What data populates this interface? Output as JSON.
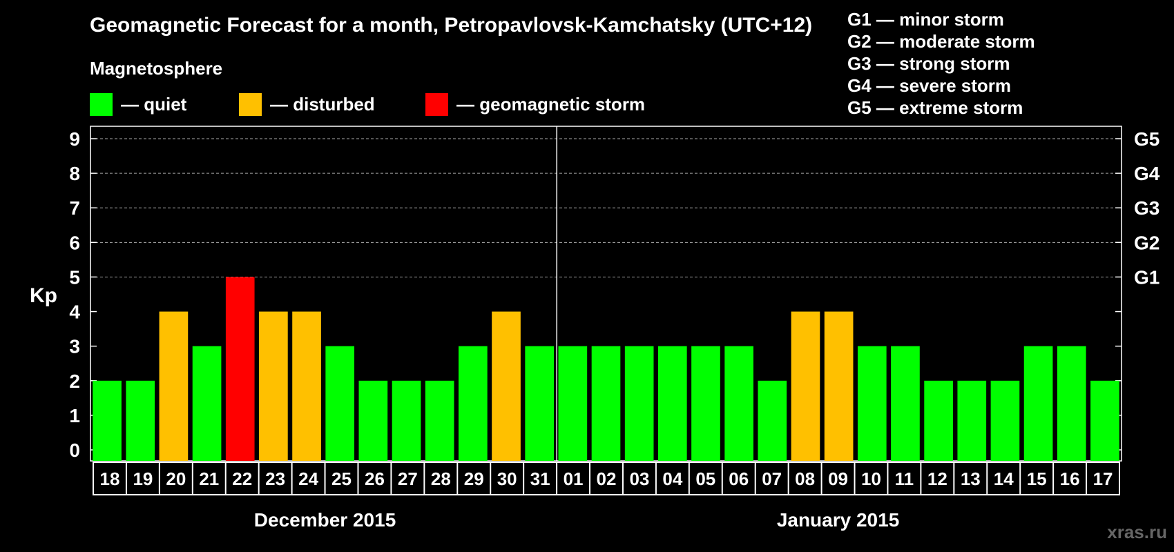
{
  "colors": {
    "quiet": "#00ff00",
    "disturbed": "#ffc000",
    "storm": "#ff0000"
  },
  "legend": {
    "heading": "Magnetosphere",
    "items": [
      {
        "label": "— quiet",
        "color_key": "quiet"
      },
      {
        "label": "— disturbed",
        "color_key": "disturbed"
      },
      {
        "label": "— geomagnetic storm",
        "color_key": "storm"
      }
    ]
  },
  "storm_scale": [
    "G1 — minor storm",
    "G2 — moderate storm",
    "G3 — strong storm",
    "G4 — severe storm",
    "G5 — extreme storm"
  ],
  "watermark": "xras.ru",
  "chart_data": {
    "type": "bar",
    "title": "Geomagnetic Forecast for a month, Petropavlovsk-Kamchatsky (UTC+12)",
    "ylabel": "Kp",
    "ylim": [
      0,
      9
    ],
    "yticks": [
      "0",
      "1",
      "2",
      "3",
      "4",
      "5",
      "6",
      "7",
      "8",
      "9"
    ],
    "right_ticks": [
      {
        "value": 5,
        "label": "G1"
      },
      {
        "value": 6,
        "label": "G2"
      },
      {
        "value": 7,
        "label": "G3"
      },
      {
        "value": 8,
        "label": "G4"
      },
      {
        "value": 9,
        "label": "G5"
      }
    ],
    "grid": "dashed at Kp 5-9",
    "categories": [
      "18",
      "19",
      "20",
      "21",
      "22",
      "23",
      "24",
      "25",
      "26",
      "27",
      "28",
      "29",
      "30",
      "31",
      "01",
      "02",
      "03",
      "04",
      "05",
      "06",
      "07",
      "08",
      "09",
      "10",
      "11",
      "12",
      "13",
      "14",
      "15",
      "16",
      "17"
    ],
    "values": [
      2,
      2,
      4,
      3,
      5,
      4,
      4,
      3,
      2,
      2,
      2,
      3,
      4,
      3,
      3,
      3,
      3,
      3,
      3,
      3,
      2,
      4,
      4,
      3,
      3,
      2,
      2,
      2,
      3,
      3,
      2
    ],
    "status": [
      "quiet",
      "quiet",
      "disturbed",
      "quiet",
      "storm",
      "disturbed",
      "disturbed",
      "quiet",
      "quiet",
      "quiet",
      "quiet",
      "quiet",
      "disturbed",
      "quiet",
      "quiet",
      "quiet",
      "quiet",
      "quiet",
      "quiet",
      "quiet",
      "quiet",
      "disturbed",
      "disturbed",
      "quiet",
      "quiet",
      "quiet",
      "quiet",
      "quiet",
      "quiet",
      "quiet",
      "quiet"
    ],
    "month_groups": [
      {
        "label": "December 2015",
        "count": 14
      },
      {
        "label": "January 2015",
        "count": 17
      }
    ]
  }
}
